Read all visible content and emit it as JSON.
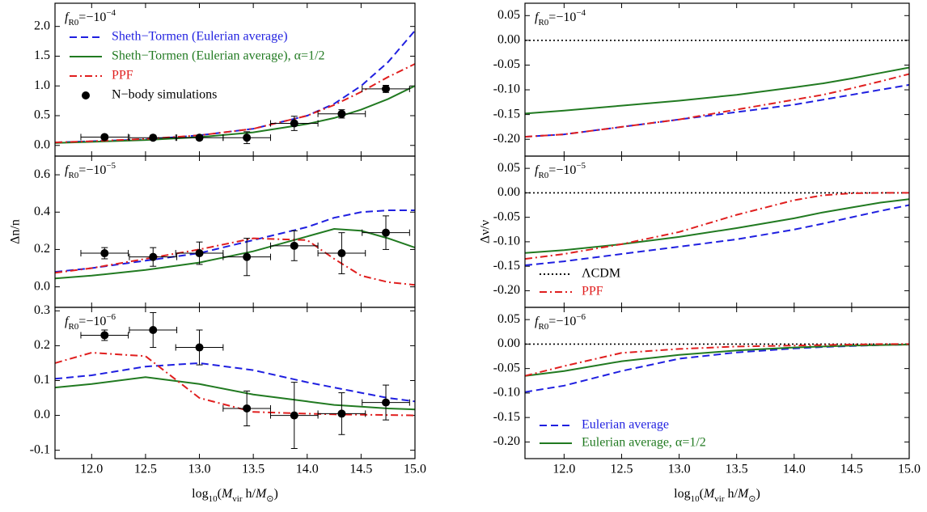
{
  "chart_data": [
    {
      "type": "line",
      "xlim": [
        11.66,
        15.0
      ],
      "ylim": [
        -0.18,
        2.39
      ],
      "xticks": [
        12,
        12.5,
        13,
        13.5,
        14,
        14.5,
        15
      ],
      "yticks": [
        {
          "value": 0,
          "label": "0.0"
        },
        0.5,
        {
          "value": 1,
          "label": "1.0"
        },
        1.5,
        {
          "value": 2,
          "label": "2.0"
        }
      ],
      "annotation": [
        {
          "text": "f",
          "pos": "i"
        },
        {
          "text": "R0",
          "pos": "sub"
        },
        {
          "text": "=−10"
        },
        {
          "text": "−4",
          "pos": "sup"
        }
      ],
      "legend": "upper-left",
      "x": [
        11.66,
        12.0,
        12.5,
        13.0,
        13.5,
        14.0,
        14.25,
        14.5,
        14.75,
        15.0
      ],
      "series": [
        {
          "name": "Sheth−Tormen (Eulerian average)",
          "color": "#1f1fe0",
          "dash": "dashed",
          "values": [
            0.05,
            0.07,
            0.1,
            0.17,
            0.28,
            0.5,
            0.7,
            1.0,
            1.4,
            1.93
          ]
        },
        {
          "name": "Sheth−Tormen (Eulerian average), α=1/2",
          "color": "#217a21",
          "dash": "solid",
          "values": [
            0.04,
            0.06,
            0.09,
            0.14,
            0.22,
            0.36,
            0.46,
            0.6,
            0.78,
            1.0
          ]
        },
        {
          "name": "PPF",
          "color": "#e01f1f",
          "dash": "dashdot",
          "values": [
            0.05,
            0.07,
            0.11,
            0.17,
            0.28,
            0.5,
            0.68,
            0.9,
            1.15,
            1.37
          ]
        }
      ],
      "points": {
        "name": "N−body simulations",
        "color": "#000000",
        "x": [
          12.12,
          12.57,
          13.0,
          13.44,
          13.88,
          14.32,
          14.73
        ],
        "xerr": [
          0.22,
          0.22,
          0.22,
          0.22,
          0.22,
          0.22,
          0.22
        ],
        "y": [
          0.14,
          0.13,
          0.13,
          0.13,
          0.37,
          0.53,
          0.95
        ],
        "yerr": [
          0.03,
          0.03,
          0.04,
          0.1,
          0.12,
          0.07,
          0.06
        ]
      }
    },
    {
      "type": "line",
      "xlim": [
        11.66,
        15.0
      ],
      "ylim": [
        -0.11,
        0.7
      ],
      "xticks": [
        12,
        12.5,
        13,
        13.5,
        14,
        14.5,
        15
      ],
      "yticks": [
        {
          "value": 0,
          "label": "0.0"
        },
        0.2,
        0.4,
        0.6
      ],
      "ylabel": "Δn/n",
      "annotation": [
        {
          "text": "f",
          "pos": "i"
        },
        {
          "text": "R0",
          "pos": "sub"
        },
        {
          "text": "=−10"
        },
        {
          "text": "−5",
          "pos": "sup"
        }
      ],
      "x": [
        11.66,
        12.0,
        12.5,
        13.0,
        13.5,
        14.0,
        14.25,
        14.5,
        14.75,
        15.0
      ],
      "series": [
        {
          "color": "#1f1fe0",
          "dash": "dashed",
          "values": [
            0.08,
            0.1,
            0.14,
            0.18,
            0.25,
            0.32,
            0.37,
            0.4,
            0.41,
            0.41
          ]
        },
        {
          "color": "#217a21",
          "dash": "solid",
          "values": [
            0.045,
            0.06,
            0.09,
            0.13,
            0.19,
            0.27,
            0.31,
            0.3,
            0.26,
            0.21
          ]
        },
        {
          "color": "#e01f1f",
          "dash": "dashdot",
          "values": [
            0.075,
            0.1,
            0.15,
            0.2,
            0.26,
            0.25,
            0.15,
            0.06,
            0.025,
            0.01
          ]
        }
      ],
      "points": {
        "color": "#000000",
        "x": [
          12.12,
          12.57,
          13.0,
          13.44,
          13.88,
          14.32,
          14.73
        ],
        "xerr": [
          0.22,
          0.22,
          0.22,
          0.22,
          0.22,
          0.22,
          0.22
        ],
        "y": [
          0.18,
          0.16,
          0.18,
          0.16,
          0.22,
          0.18,
          0.29
        ],
        "yerr": [
          0.03,
          0.05,
          0.06,
          0.1,
          0.08,
          0.11,
          0.09
        ]
      }
    },
    {
      "type": "line",
      "xlim": [
        11.66,
        15.0
      ],
      "ylim": [
        -0.124,
        0.31
      ],
      "xticks": [
        {
          "value": 12,
          "label": "12.0"
        },
        12.5,
        {
          "value": 13,
          "label": "13.0"
        },
        13.5,
        {
          "value": 14,
          "label": "14.0"
        },
        14.5,
        {
          "value": 15,
          "label": "15.0"
        }
      ],
      "yticks": [
        -0.1,
        {
          "value": 0,
          "label": "0.0"
        },
        0.1,
        0.2,
        0.3
      ],
      "xlabel": [
        {
          "text": "log"
        },
        {
          "text": "10",
          "pos": "sub"
        },
        {
          "text": "("
        },
        {
          "text": "M",
          "pos": "i"
        },
        {
          "text": "vir",
          "pos": "sub"
        },
        {
          "text": " h/"
        },
        {
          "text": "M",
          "pos": "i"
        },
        {
          "text": "⊙",
          "pos": "sub"
        },
        {
          "text": ")"
        }
      ],
      "annotation": [
        {
          "text": "f",
          "pos": "i"
        },
        {
          "text": "R0",
          "pos": "sub"
        },
        {
          "text": "=−10"
        },
        {
          "text": "−6",
          "pos": "sup"
        }
      ],
      "x": [
        11.66,
        12.0,
        12.5,
        13.0,
        13.5,
        14.0,
        14.25,
        14.5,
        14.75,
        15.0
      ],
      "series": [
        {
          "color": "#1f1fe0",
          "dash": "dashed",
          "values": [
            0.105,
            0.115,
            0.14,
            0.15,
            0.13,
            0.095,
            0.08,
            0.065,
            0.05,
            0.04
          ]
        },
        {
          "color": "#217a21",
          "dash": "solid",
          "values": [
            0.08,
            0.09,
            0.11,
            0.09,
            0.06,
            0.04,
            0.03,
            0.025,
            0.02,
            0.017
          ]
        },
        {
          "color": "#e01f1f",
          "dash": "dashdot",
          "values": [
            0.15,
            0.18,
            0.17,
            0.05,
            0.01,
            0.005,
            0.003,
            0.002,
            0.001,
            0
          ]
        }
      ],
      "points": {
        "color": "#000000",
        "x": [
          12.12,
          12.57,
          13.0,
          13.44,
          13.88,
          14.32,
          14.73
        ],
        "xerr": [
          0.22,
          0.22,
          0.22,
          0.22,
          0.22,
          0.22,
          0.22
        ],
        "y": [
          0.23,
          0.245,
          0.195,
          0.02,
          0,
          0.005,
          0.037
        ],
        "yerr": [
          0.015,
          0.05,
          0.05,
          0.05,
          0.095,
          0.06,
          0.05
        ]
      }
    },
    {
      "type": "line",
      "xlim": [
        11.66,
        15.0
      ],
      "ylim": [
        -0.234,
        0.075
      ],
      "xticks": [
        12,
        12.5,
        13,
        13.5,
        14,
        14.5,
        15
      ],
      "yticks": [
        0.05,
        {
          "value": 0,
          "label": "0.00"
        },
        -0.05,
        {
          "value": -0.1,
          "label": "-0.10"
        },
        -0.15,
        {
          "value": -0.2,
          "label": "-0.20"
        }
      ],
      "annotation": [
        {
          "text": "f",
          "pos": "i"
        },
        {
          "text": "R0",
          "pos": "sub"
        },
        {
          "text": "=−10"
        },
        {
          "text": "−4",
          "pos": "sup"
        }
      ],
      "x": [
        11.66,
        12.0,
        12.5,
        13.0,
        13.5,
        14.0,
        14.25,
        14.5,
        14.75,
        15.0
      ],
      "series": [
        {
          "color": "#000000",
          "dash": "dotted",
          "x": [
            11.66,
            15.0
          ],
          "values": [
            0,
            0
          ]
        },
        {
          "color": "#1f1fe0",
          "dash": "dashed",
          "values": [
            -0.195,
            -0.19,
            -0.175,
            -0.16,
            -0.145,
            -0.13,
            -0.12,
            -0.11,
            -0.1,
            -0.09
          ]
        },
        {
          "color": "#217a21",
          "dash": "solid",
          "values": [
            -0.148,
            -0.142,
            -0.132,
            -0.122,
            -0.11,
            -0.095,
            -0.087,
            -0.077,
            -0.066,
            -0.055
          ]
        },
        {
          "color": "#e01f1f",
          "dash": "dashdot",
          "values": [
            -0.195,
            -0.19,
            -0.175,
            -0.16,
            -0.14,
            -0.12,
            -0.11,
            -0.097,
            -0.083,
            -0.068
          ]
        }
      ]
    },
    {
      "type": "line",
      "xlim": [
        11.66,
        15.0
      ],
      "ylim": [
        -0.234,
        0.075
      ],
      "xticks": [
        12,
        12.5,
        13,
        13.5,
        14,
        14.5,
        15
      ],
      "yticks": [
        0.05,
        {
          "value": 0,
          "label": "0.00"
        },
        -0.05,
        {
          "value": -0.1,
          "label": "-0.10"
        },
        -0.15,
        {
          "value": -0.2,
          "label": "-0.20"
        }
      ],
      "ylabel": "Δν/ν",
      "legend": "lower-left",
      "annotation": [
        {
          "text": "f",
          "pos": "i"
        },
        {
          "text": "R0",
          "pos": "sub"
        },
        {
          "text": "=−10"
        },
        {
          "text": "−5",
          "pos": "sup"
        }
      ],
      "x": [
        11.66,
        12.0,
        12.5,
        13.0,
        13.5,
        14.0,
        14.25,
        14.5,
        14.75,
        15.0
      ],
      "series": [
        {
          "name": "ΛCDM",
          "color": "#000000",
          "dash": "dotted",
          "x": [
            11.66,
            15.0
          ],
          "values": [
            0,
            0
          ]
        },
        {
          "color": "#1f1fe0",
          "dash": "dashed",
          "values": [
            -0.148,
            -0.14,
            -0.125,
            -0.11,
            -0.095,
            -0.075,
            -0.063,
            -0.05,
            -0.037,
            -0.025
          ]
        },
        {
          "color": "#217a21",
          "dash": "solid",
          "values": [
            -0.123,
            -0.117,
            -0.105,
            -0.09,
            -0.072,
            -0.052,
            -0.04,
            -0.03,
            -0.02,
            -0.013
          ]
        },
        {
          "name": "PPF",
          "color": "#e01f1f",
          "dash": "dashdot",
          "values": [
            -0.135,
            -0.125,
            -0.105,
            -0.08,
            -0.045,
            -0.015,
            -0.005,
            -0.001,
            0,
            0
          ]
        }
      ]
    },
    {
      "type": "line",
      "xlim": [
        11.66,
        15.0
      ],
      "ylim": [
        -0.234,
        0.075
      ],
      "xticks": [
        {
          "value": 12,
          "label": "12.0"
        },
        12.5,
        {
          "value": 13,
          "label": "13.0"
        },
        13.5,
        {
          "value": 14,
          "label": "14.0"
        },
        14.5,
        {
          "value": 15,
          "label": "15.0"
        }
      ],
      "yticks": [
        0.05,
        {
          "value": 0,
          "label": "0.00"
        },
        -0.05,
        {
          "value": -0.1,
          "label": "-0.10"
        },
        -0.15,
        {
          "value": -0.2,
          "label": "-0.20"
        }
      ],
      "xlabel": [
        {
          "text": "log"
        },
        {
          "text": "10",
          "pos": "sub"
        },
        {
          "text": "("
        },
        {
          "text": "M",
          "pos": "i"
        },
        {
          "text": "vir",
          "pos": "sub"
        },
        {
          "text": " h/"
        },
        {
          "text": "M",
          "pos": "i"
        },
        {
          "text": "⊙",
          "pos": "sub"
        },
        {
          "text": ")"
        }
      ],
      "legend": "lower-left",
      "annotation": [
        {
          "text": "f",
          "pos": "i"
        },
        {
          "text": "R0",
          "pos": "sub"
        },
        {
          "text": "=−10"
        },
        {
          "text": "−6",
          "pos": "sup"
        }
      ],
      "x": [
        11.66,
        12.0,
        12.5,
        13.0,
        13.5,
        14.0,
        14.25,
        14.5,
        14.75,
        15.0
      ],
      "series": [
        {
          "color": "#000000",
          "dash": "dotted",
          "x": [
            11.66,
            15.0
          ],
          "values": [
            0,
            0
          ]
        },
        {
          "name": "Eulerian average",
          "color": "#1f1fe0",
          "dash": "dashed",
          "values": [
            -0.098,
            -0.085,
            -0.055,
            -0.03,
            -0.017,
            -0.009,
            -0.006,
            -0.004,
            -0.002,
            -0.001
          ]
        },
        {
          "name": "Eulerian average, α=1/2",
          "color": "#217a21",
          "dash": "solid",
          "values": [
            -0.065,
            -0.055,
            -0.035,
            -0.022,
            -0.013,
            -0.007,
            -0.005,
            -0.003,
            -0.002,
            -0.001
          ]
        },
        {
          "color": "#e01f1f",
          "dash": "dashdot",
          "values": [
            -0.065,
            -0.045,
            -0.018,
            -0.01,
            -0.005,
            -0.003,
            -0.002,
            -0.001,
            0,
            0
          ]
        }
      ]
    }
  ]
}
